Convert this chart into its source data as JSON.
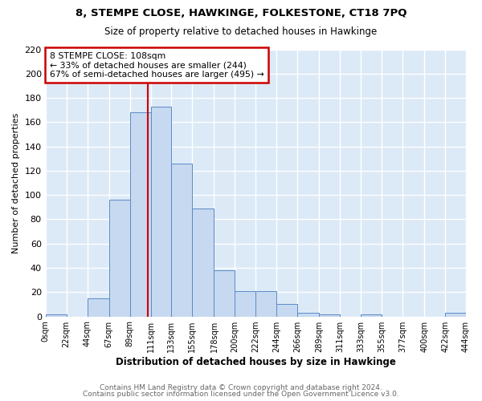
{
  "title": "8, STEMPE CLOSE, HAWKINGE, FOLKESTONE, CT18 7PQ",
  "subtitle": "Size of property relative to detached houses in Hawkinge",
  "xlabel": "Distribution of detached houses by size in Hawkinge",
  "ylabel": "Number of detached properties",
  "annotation_line1": "8 STEMPE CLOSE: 108sqm",
  "annotation_line2": "← 33% of detached houses are smaller (244)",
  "annotation_line3": "67% of semi-detached houses are larger (495) →",
  "property_value": 108,
  "bar_color": "#c6d9f0",
  "bar_edge_color": "#5b8ac5",
  "vline_color": "#cc0000",
  "plot_bg_color": "#dce9f7",
  "fig_bg_color": "#ffffff",
  "grid_color": "#ffffff",
  "footer1": "Contains HM Land Registry data © Crown copyright and database right 2024.",
  "footer2": "Contains public sector information licensed under the Open Government Licence v3.0.",
  "bin_edges": [
    0,
    22,
    44,
    67,
    89,
    111,
    133,
    155,
    178,
    200,
    222,
    244,
    266,
    289,
    311,
    333,
    355,
    377,
    400,
    422,
    444
  ],
  "bin_labels": [
    "0sqm",
    "22sqm",
    "44sqm",
    "67sqm",
    "89sqm",
    "111sqm",
    "133sqm",
    "155sqm",
    "178sqm",
    "200sqm",
    "222sqm",
    "244sqm",
    "266sqm",
    "289sqm",
    "311sqm",
    "333sqm",
    "355sqm",
    "377sqm",
    "400sqm",
    "422sqm",
    "444sqm"
  ],
  "counts": [
    2,
    0,
    15,
    96,
    168,
    173,
    126,
    89,
    38,
    21,
    21,
    10,
    3,
    2,
    0,
    2,
    0,
    0,
    0,
    3
  ],
  "ylim": [
    0,
    220
  ],
  "yticks": [
    0,
    20,
    40,
    60,
    80,
    100,
    120,
    140,
    160,
    180,
    200,
    220
  ]
}
